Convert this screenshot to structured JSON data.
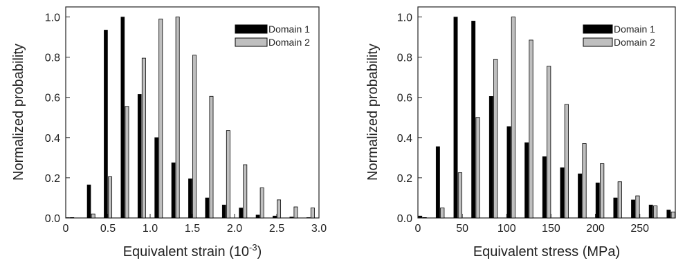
{
  "chart_data": [
    {
      "type": "bar",
      "xlabel": "Equivalent strain (10",
      "xlabel_sup": "-3",
      "xlabel_end": ")",
      "ylabel": "Normalized probability",
      "xlim": [
        0,
        3.0
      ],
      "ylim": [
        0,
        1.05
      ],
      "xticks": [
        "0",
        "0.5",
        "1.0",
        "1.5",
        "2.0",
        "2.5",
        "3.0"
      ],
      "xtick_values": [
        0,
        0.5,
        1.0,
        1.5,
        2.0,
        2.5,
        3.0
      ],
      "yticks": [
        "0.0",
        "0.2",
        "0.4",
        "0.6",
        "0.8",
        "1.0"
      ],
      "ytick_values": [
        0,
        0.2,
        0.4,
        0.6,
        0.8,
        1.0
      ],
      "legend_position": "top-right",
      "bin_width": 0.1,
      "x": [
        0.05,
        0.3,
        0.5,
        0.7,
        0.9,
        1.1,
        1.3,
        1.5,
        1.7,
        1.9,
        2.1,
        2.3,
        2.5,
        2.7,
        2.9
      ],
      "series": [
        {
          "name": "Domain 1",
          "color": "#000000",
          "values": [
            0.0,
            0.165,
            0.935,
            1.0,
            0.615,
            0.4,
            0.275,
            0.195,
            0.1,
            0.065,
            0.05,
            0.015,
            0.01,
            0.005,
            0.0
          ]
        },
        {
          "name": "Domain 2",
          "color": "#bfbfbf",
          "values": [
            0.0,
            0.02,
            0.205,
            0.555,
            0.795,
            0.99,
            1.0,
            0.81,
            0.605,
            0.435,
            0.265,
            0.15,
            0.09,
            0.055,
            0.05
          ]
        }
      ]
    },
    {
      "type": "bar",
      "xlabel": "Equivalent stress (MPa)",
      "ylabel": "Normalized probability",
      "xlim": [
        0,
        290
      ],
      "ylim": [
        0,
        1.05
      ],
      "xticks": [
        "0",
        "50",
        "100",
        "150",
        "200",
        "250"
      ],
      "xtick_values": [
        0,
        50,
        100,
        150,
        200,
        250
      ],
      "yticks": [
        "0.0",
        "0.2",
        "0.4",
        "0.6",
        "0.8",
        "1.0"
      ],
      "ytick_values": [
        0,
        0.2,
        0.4,
        0.6,
        0.8,
        1.0
      ],
      "legend_position": "top-right",
      "bin_width": 10,
      "x": [
        5,
        25,
        45,
        65,
        85,
        105,
        125,
        145,
        165,
        185,
        205,
        225,
        245,
        265,
        285
      ],
      "series": [
        {
          "name": "Domain 1",
          "color": "#000000",
          "values": [
            0.01,
            0.355,
            1.0,
            0.98,
            0.605,
            0.455,
            0.375,
            0.305,
            0.25,
            0.22,
            0.175,
            0.1,
            0.09,
            0.065,
            0.04
          ]
        },
        {
          "name": "Domain 2",
          "color": "#bfbfbf",
          "values": [
            0.0,
            0.05,
            0.225,
            0.5,
            0.79,
            1.0,
            0.885,
            0.755,
            0.565,
            0.37,
            0.27,
            0.18,
            0.11,
            0.06,
            0.03
          ]
        }
      ]
    }
  ]
}
